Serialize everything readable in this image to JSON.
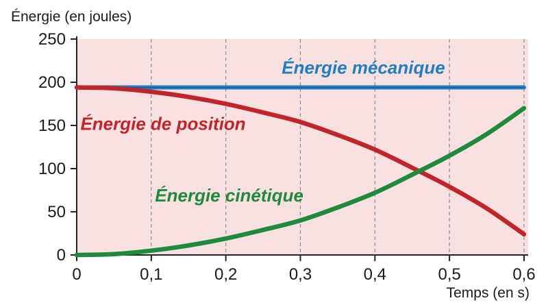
{
  "chart_data": {
    "type": "line",
    "title": "",
    "ylabel": "Énergie (en joules)",
    "xlabel": "Temps (en s)",
    "xlim": [
      0,
      0.6
    ],
    "ylim": [
      0,
      250
    ],
    "x_ticks": [
      "0",
      "0,1",
      "0,2",
      "0,3",
      "0,4",
      "0,5",
      "0,6"
    ],
    "x_tick_values": [
      0,
      0.1,
      0.2,
      0.3,
      0.4,
      0.5,
      0.6
    ],
    "y_ticks": [
      "0",
      "50",
      "100",
      "150",
      "200",
      "250"
    ],
    "y_tick_values": [
      0,
      50,
      100,
      150,
      200,
      250
    ],
    "grid": "vertical dashed",
    "background_color": "#f9e1e1",
    "series": [
      {
        "name": "Énergie mécanique",
        "color": "#1f7fc0",
        "x": [
          0,
          0.1,
          0.2,
          0.3,
          0.4,
          0.5,
          0.6
        ],
        "values": [
          194,
          194,
          194,
          194,
          194,
          194,
          194
        ]
      },
      {
        "name": "Énergie de position",
        "color": "#c0252b",
        "x": [
          0,
          0.05,
          0.1,
          0.15,
          0.2,
          0.25,
          0.3,
          0.35,
          0.4,
          0.45,
          0.5,
          0.55,
          0.6
        ],
        "values": [
          194,
          193,
          189,
          183,
          175,
          165,
          154,
          139,
          122,
          101,
          79,
          54,
          24
        ]
      },
      {
        "name": "Énergie cinétique",
        "color": "#1e8a3c",
        "x": [
          0,
          0.05,
          0.1,
          0.15,
          0.2,
          0.25,
          0.3,
          0.35,
          0.4,
          0.45,
          0.5,
          0.55,
          0.6
        ],
        "values": [
          0,
          1,
          5,
          11,
          19,
          29,
          40,
          55,
          72,
          93,
          115,
          140,
          170
        ]
      }
    ]
  }
}
